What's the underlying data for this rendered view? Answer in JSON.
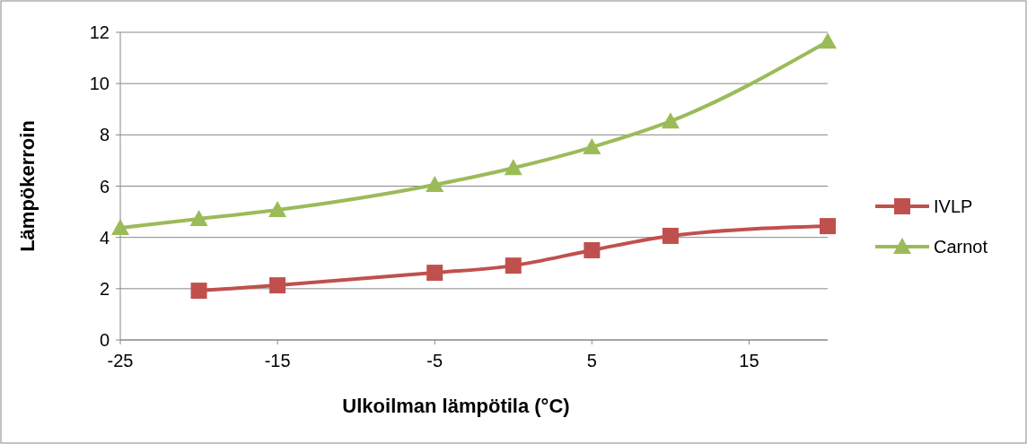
{
  "chart_data": {
    "type": "line",
    "xlabel": "Ulkoilman lämpötila (°C)",
    "ylabel": "Lämpökerroin",
    "xlim": [
      -25,
      20
    ],
    "xticks": [
      -25,
      -15,
      -5,
      5,
      15
    ],
    "ylim": [
      0,
      12
    ],
    "yticks": [
      0,
      2,
      4,
      6,
      8,
      10,
      12
    ],
    "grid": "y",
    "legend": "right",
    "series": [
      {
        "name": "IVLP",
        "color": "#c0504d",
        "marker": "square",
        "x": [
          -20,
          -15,
          -5,
          0,
          5,
          10,
          20
        ],
        "values": [
          1.92,
          2.13,
          2.62,
          2.9,
          3.5,
          4.06,
          4.44
        ]
      },
      {
        "name": "Carnot",
        "color": "#9bbb59",
        "marker": "triangle",
        "x": [
          -25,
          -20,
          -15,
          -5,
          0,
          5,
          10,
          20
        ],
        "values": [
          4.37,
          4.72,
          5.07,
          6.05,
          6.71,
          7.52,
          8.53,
          11.64
        ]
      }
    ]
  }
}
